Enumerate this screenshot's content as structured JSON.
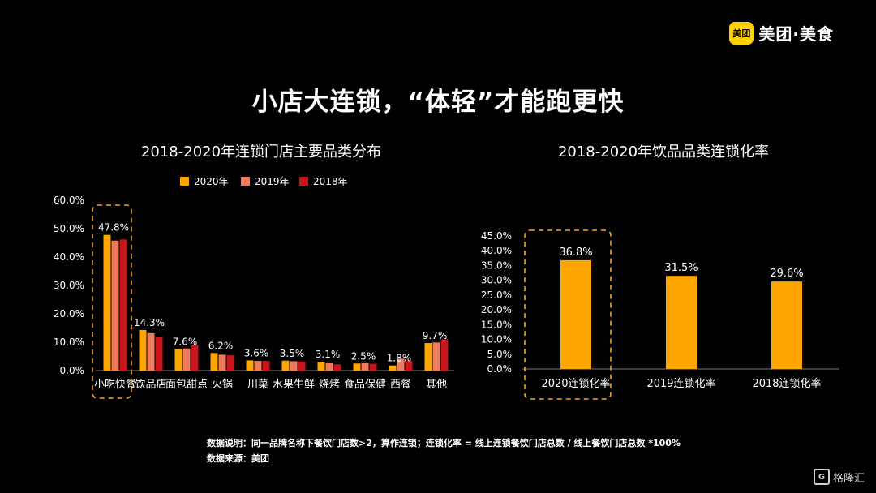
{
  "brand": {
    "badge": "美团",
    "name": "美团·美食"
  },
  "title": "小店大连锁，“体轻”才能跑更快",
  "watermark": {
    "icon": "G",
    "text": "格隆汇"
  },
  "footnote": {
    "note": "数据说明：同一品牌名称下餐饮门店数>2，算作连锁；连锁化率 = 线上连锁餐饮门店总数 / 线上餐饮门店总数 *100%",
    "source": "数据来源：美团"
  },
  "colors": {
    "y2020": "#FFA500",
    "y2019": "#F07A5C",
    "y2018": "#C8151B",
    "highlight": "#F5A623"
  },
  "chart_data": [
    {
      "type": "bar",
      "title": "2018-2020年连锁门店主要品类分布",
      "categories": [
        "小吃快餐",
        "饮品店",
        "面包甜点",
        "火锅",
        "川菜",
        "水果生鲜",
        "烧烤",
        "食品保健",
        "西餐",
        "其他"
      ],
      "series": [
        {
          "name": "2020年",
          "values": [
            47.8,
            14.3,
            7.6,
            6.2,
            3.6,
            3.5,
            3.1,
            2.5,
            1.8,
            9.7
          ]
        },
        {
          "name": "2019年",
          "values": [
            45.8,
            13.2,
            7.8,
            5.6,
            3.4,
            3.3,
            2.6,
            2.6,
            4.2,
            9.9
          ]
        },
        {
          "name": "2018年",
          "values": [
            46.2,
            12.0,
            9.0,
            5.4,
            3.4,
            3.2,
            2.2,
            2.4,
            3.4,
            11.0
          ]
        }
      ],
      "data_labels": [
        "47.8%",
        "14.3%",
        "7.6%",
        "6.2%",
        "3.6%",
        "3.5%",
        "3.1%",
        "2.5%",
        "1.8%",
        "9.7%"
      ],
      "ylim": [
        0,
        60
      ],
      "yticks": [
        "0.0%",
        "10.0%",
        "20.0%",
        "30.0%",
        "40.0%",
        "50.0%",
        "60.0%"
      ],
      "legend_position": "top",
      "highlight_category": "小吃快餐"
    },
    {
      "type": "bar",
      "title": "2018-2020年饮品品类连锁化率",
      "categories": [
        "2020连锁化率",
        "2019连锁化率",
        "2018连锁化率"
      ],
      "values": [
        36.8,
        31.5,
        29.6
      ],
      "data_labels": [
        "36.8%",
        "31.5%",
        "29.6%"
      ],
      "ylim": [
        0,
        45
      ],
      "yticks": [
        "0.0%",
        "5.0%",
        "10.0%",
        "15.0%",
        "20.0%",
        "25.0%",
        "30.0%",
        "35.0%",
        "40.0%",
        "45.0%"
      ],
      "highlight_category": "2020连锁化率"
    }
  ]
}
